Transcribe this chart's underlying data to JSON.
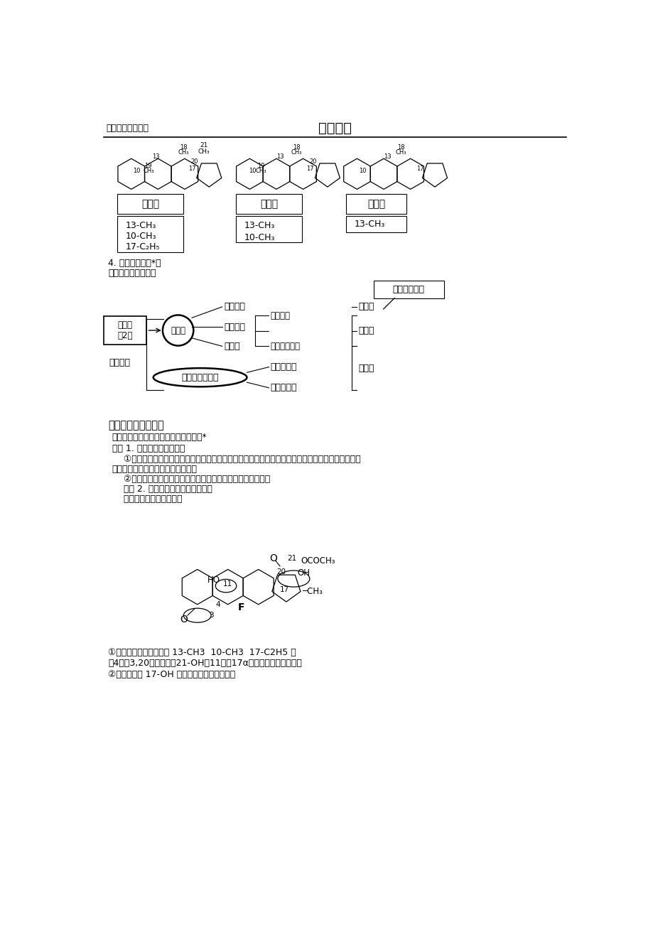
{
  "title_left": "初级药师考试辅导",
  "title_center": "基础知识",
  "bg_color": "#ffffff",
  "text_color": "#000000",
  "pregnane_groups": [
    "13-CH₃",
    "10-CH₃",
    "17-C₂H₅"
  ],
  "androstane_groups": [
    "13-CH₃",
    "10-CH₃"
  ],
  "estrane_groups": [
    "13-CH₃"
  ],
  "section4_text": [
    "4. 按作用分两类*：",
    "考点：按作用分２类"
  ],
  "callout_box": "按结构分３类",
  "box1_label": "按作用\n分2类",
  "circle1_label": "性激素",
  "main_label": "甾体激素",
  "branch1": "雌性激素",
  "branch2": "雄性激素",
  "sub_branch1": "雄性激素",
  "sub_branch2": "蛋白同化激素",
  "branch3": "孕激素",
  "ellipse_label": "肾上腺皮质激素",
  "branch4": "糖皮质激素",
  "branch5": "盐皮质激素",
  "right1": "雌甾烷",
  "right2": "雄甾烷",
  "right3": "孕甾烷",
  "section2_title": "二、肾上腺皮质激素",
  "section2_sub1": "（一）肾上腺皮质激素结构特点和分类*",
  "section2_kp1": "考点 1. 分类，按作用分为：",
  "section2_text1": "    ①糖皮质激素（影响糖代谢，增加肝糖原，增加对冷冻及毒素等的抵抗力，具有抗风湿作用。重点药",
  "section2_text1b": "有氢化可的松、地塞米松和泼尼松）",
  "section2_text2": "    ②盐皮质激素（影响电解质代谢，促使钠的潴留和钾的排泄）",
  "section2_kp2": "    考点 2. 肾上腺皮质激素结构特点：",
  "section2_example": "    （以醋酸地塞米松为例）",
  "bottom_text1": "①具孕甾烷基本母核，（ 13-CH3  10-CH3  17-C2H5 ）",
  "bottom_text2": "含4烯，3,20－二酮，含21-OH、11位和17α位还带有羟基或羰基氧",
  "bottom_text3": "②糖皮质激素 17-OH 是（氢化可的松为代表）"
}
